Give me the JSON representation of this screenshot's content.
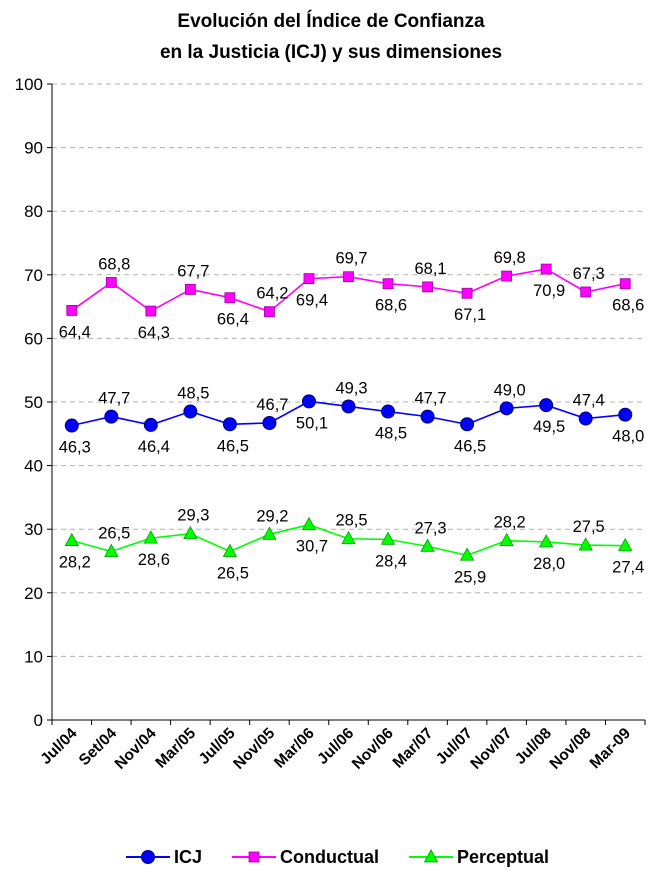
{
  "chart_data": {
    "type": "line",
    "title": [
      "Evolución del Índice de Confianza",
      "en la Justicia (ICJ) y sus dimensiones"
    ],
    "categories": [
      "Jul/04",
      "Set/04",
      "Nov/04",
      "Mar/05",
      "Jul/05",
      "Nov/05",
      "Mar/06",
      "Jul/06",
      "Nov/06",
      "Mar/07",
      "Jul/07",
      "Nov/07",
      "Jul/08",
      "Nov/08",
      "Mar-09"
    ],
    "ylim": [
      0,
      100
    ],
    "yticks": [
      0,
      10,
      20,
      30,
      40,
      50,
      60,
      70,
      80,
      90,
      100
    ],
    "grid": true,
    "legend_position": "bottom",
    "series": [
      {
        "name": "ICJ",
        "color": "#0000ff",
        "marker": "circle",
        "values": [
          46.3,
          47.7,
          46.4,
          48.5,
          46.5,
          46.7,
          50.1,
          49.3,
          48.5,
          47.7,
          46.5,
          49.0,
          49.5,
          47.4,
          48.0
        ],
        "labels": [
          "46,3",
          "47,7",
          "46,4",
          "48,5",
          "46,5",
          "46,7",
          "50,1",
          "49,3",
          "48,5",
          "47,7",
          "46,5",
          "49,0",
          "49,5",
          "47,4",
          "48,0"
        ]
      },
      {
        "name": "Conductual",
        "color": "#ff00ff",
        "marker": "square",
        "values": [
          64.4,
          68.8,
          64.3,
          67.7,
          66.4,
          64.2,
          69.4,
          69.7,
          68.6,
          68.1,
          67.1,
          69.8,
          70.9,
          67.3,
          68.6
        ],
        "labels": [
          "64,4",
          "68,8",
          "64,3",
          "67,7",
          "66,4",
          "64,2",
          "69,4",
          "69,7",
          "68,6",
          "68,1",
          "67,1",
          "69,8",
          "70,9",
          "67,3",
          "68,6"
        ]
      },
      {
        "name": "Perceptual",
        "color": "#00ff00",
        "marker": "triangle",
        "values": [
          28.2,
          26.5,
          28.6,
          29.3,
          26.5,
          29.2,
          30.7,
          28.5,
          28.4,
          27.3,
          25.9,
          28.2,
          28.0,
          27.5,
          27.4
        ],
        "labels": [
          "28,2",
          "26,5",
          "28,6",
          "29,3",
          "26,5",
          "29,2",
          "30,7",
          "28,5",
          "28,4",
          "27,3",
          "25,9",
          "28,2",
          "28,0",
          "27,5",
          "27,4"
        ]
      }
    ]
  }
}
